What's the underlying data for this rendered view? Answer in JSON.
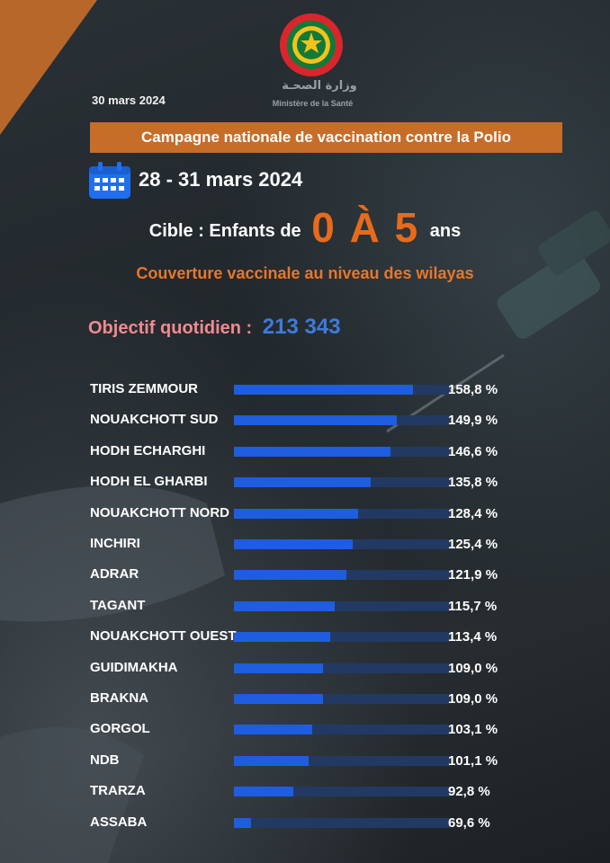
{
  "header": {
    "date": "30 mars 2024",
    "ministry_ar": "وزارة الصحـة",
    "ministry_fr": "Ministère de la Santé",
    "campaign_banner": "Campagne nationale de vaccination contre la Polio",
    "campaign_dates": "28 - 31 mars 2024",
    "target_prefix": "Cible : Enfants de",
    "target_range": "0 À 5",
    "target_suffix": "ans",
    "subtitle": "Couverture vaccinale au niveau des wilayas",
    "objective_label": "Objectif quotidien :",
    "objective_value": "213 343"
  },
  "colors": {
    "accent_orange": "#e76b1b",
    "banner_orange": "#c66d2a",
    "bar_blue": "#1f5de0",
    "bar_track": "#223a63",
    "objective_pink": "#ef8b90",
    "objective_value_blue": "#3e7bd9"
  },
  "icons": [
    "ministry-logo",
    "calendar-icon"
  ],
  "chart_data": {
    "type": "bar",
    "orientation": "horizontal",
    "title": "",
    "xlabel": "",
    "ylabel": "",
    "xlim": [
      60,
      165
    ],
    "categories": [
      "TIRIS ZEMMOUR",
      "NOUAKCHOTT SUD",
      "HODH ECHARGHI",
      "HODH EL GHARBI",
      "NOUAKCHOTT NORD",
      "INCHIRI",
      "ADRAR",
      "TAGANT",
      "NOUAKCHOTT OUEST",
      "GUIDIMAKHA",
      "BRAKNA",
      "GORGOL",
      "NDB",
      "TRARZA",
      "ASSABA"
    ],
    "values": [
      158.8,
      149.9,
      146.6,
      135.8,
      128.4,
      125.4,
      121.9,
      115.7,
      113.4,
      109.0,
      109.0,
      103.1,
      101.1,
      92.8,
      69.6
    ],
    "value_labels": [
      "158,8 %",
      "149,9 %",
      "146,6 %",
      "135,8 %",
      "128,4 %",
      "125,4 %",
      "121,9 %",
      "115,7 %",
      "113,4 %",
      "109,0 %",
      "109,0 %",
      "103,1 %",
      "101,1 %",
      "92,8 %",
      "69,6 %"
    ],
    "grid": false,
    "legend": "none"
  }
}
